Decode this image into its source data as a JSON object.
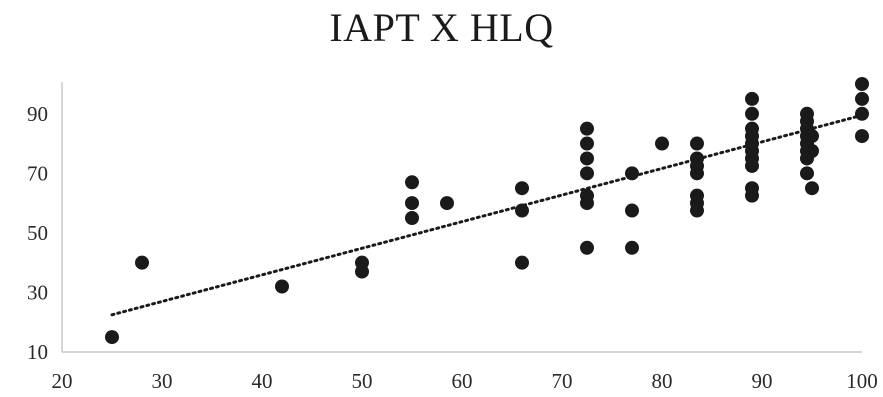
{
  "chart_data": {
    "type": "scatter",
    "title": "IAPT X HLQ",
    "xlabel": "",
    "ylabel": "",
    "xlim": [
      20,
      100
    ],
    "ylim": [
      10,
      100
    ],
    "x_ticks": [
      20,
      30,
      40,
      50,
      60,
      70,
      80,
      90,
      100
    ],
    "y_ticks": [
      10,
      30,
      50,
      70,
      90
    ],
    "grid": false,
    "trendline": {
      "type": "linear",
      "style": "dotted",
      "x": [
        25,
        100
      ],
      "y": [
        22.5,
        89.5
      ]
    },
    "marker_color": "#1a1a1a",
    "series": [
      {
        "points": [
          [
            25,
            15
          ],
          [
            28,
            40
          ],
          [
            42,
            32
          ],
          [
            50,
            37
          ],
          [
            50,
            40
          ],
          [
            55,
            55
          ],
          [
            55,
            60
          ],
          [
            55,
            67
          ],
          [
            58.5,
            60
          ],
          [
            66,
            40
          ],
          [
            66,
            57.5
          ],
          [
            66,
            65
          ],
          [
            72.5,
            45
          ],
          [
            72.5,
            60
          ],
          [
            72.5,
            62.5
          ],
          [
            72.5,
            70
          ],
          [
            72.5,
            75
          ],
          [
            72.5,
            80
          ],
          [
            72.5,
            85
          ],
          [
            77,
            45
          ],
          [
            77,
            57.5
          ],
          [
            77,
            70
          ],
          [
            80,
            80
          ],
          [
            83.5,
            57.5
          ],
          [
            83.5,
            60
          ],
          [
            83.5,
            62.5
          ],
          [
            83.5,
            70
          ],
          [
            83.5,
            72.5
          ],
          [
            83.5,
            75
          ],
          [
            83.5,
            80
          ],
          [
            89,
            62.5
          ],
          [
            89,
            65
          ],
          [
            89,
            72.5
          ],
          [
            89,
            75
          ],
          [
            89,
            77.5
          ],
          [
            89,
            80
          ],
          [
            89,
            82.5
          ],
          [
            89,
            85
          ],
          [
            89,
            90
          ],
          [
            89,
            95
          ],
          [
            94.5,
            70
          ],
          [
            94.5,
            75
          ],
          [
            94.5,
            77.5
          ],
          [
            94.5,
            80
          ],
          [
            94.5,
            82.5
          ],
          [
            94.5,
            85
          ],
          [
            94.5,
            87.5
          ],
          [
            94.5,
            90
          ],
          [
            95,
            65
          ],
          [
            95,
            77.5
          ],
          [
            95,
            82.5
          ],
          [
            100,
            82.5
          ],
          [
            100,
            90
          ],
          [
            100,
            95
          ],
          [
            100,
            100
          ]
        ]
      }
    ]
  }
}
